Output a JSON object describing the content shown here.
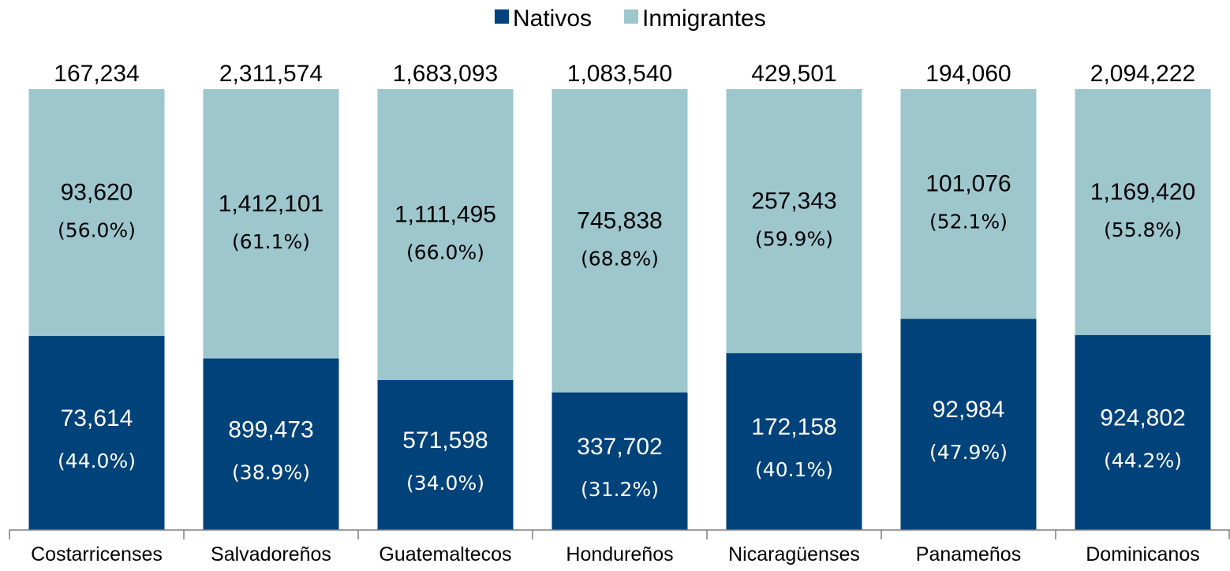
{
  "chart_data": {
    "type": "bar",
    "stacked": true,
    "normalized": true,
    "categories": [
      "Costarricenses",
      "Salvadoreños",
      "Guatemaltecos",
      "Hondureños",
      "Nicaragüenses",
      "Panameños",
      "Dominicanos"
    ],
    "totals": [
      "167,234",
      "2,311,574",
      "1,683,093",
      "1,083,540",
      "429,501",
      "194,060",
      "2,094,222"
    ],
    "series": [
      {
        "name": "Nativos",
        "color": "#00427A",
        "values": [
          73614,
          899473,
          571598,
          337702,
          172158,
          92984,
          924802
        ],
        "value_labels": [
          "73,614",
          "899,473",
          "571,598",
          "337,702",
          "172,158",
          "92,984",
          "924,802"
        ],
        "percent": [
          44.0,
          38.9,
          34.0,
          31.2,
          40.1,
          47.9,
          44.2
        ],
        "percent_labels": [
          "(44.0%)",
          "(38.9%)",
          "(34.0%)",
          "(31.2%)",
          "(40.1%)",
          "(47.9%)",
          "(44.2%)"
        ]
      },
      {
        "name": "Inmigrantes",
        "color": "#9DC6CD",
        "values": [
          93620,
          1412101,
          1111495,
          745838,
          257343,
          101076,
          1169420
        ],
        "value_labels": [
          "93,620",
          "1,412,101",
          "1,111,495",
          "745,838",
          "257,343",
          "101,076",
          "1,169,420"
        ],
        "percent": [
          56.0,
          61.1,
          66.0,
          68.8,
          59.9,
          52.1,
          55.8
        ],
        "percent_labels": [
          "(56.0%)",
          "(61.1%)",
          "(66.0%)",
          "(68.8%)",
          "(59.9%)",
          "(52.1%)",
          "(55.8%)"
        ]
      }
    ],
    "ylim": [
      0,
      100
    ],
    "grid": false,
    "legend_position": "top-center",
    "title": "",
    "xlabel": "",
    "ylabel": ""
  }
}
